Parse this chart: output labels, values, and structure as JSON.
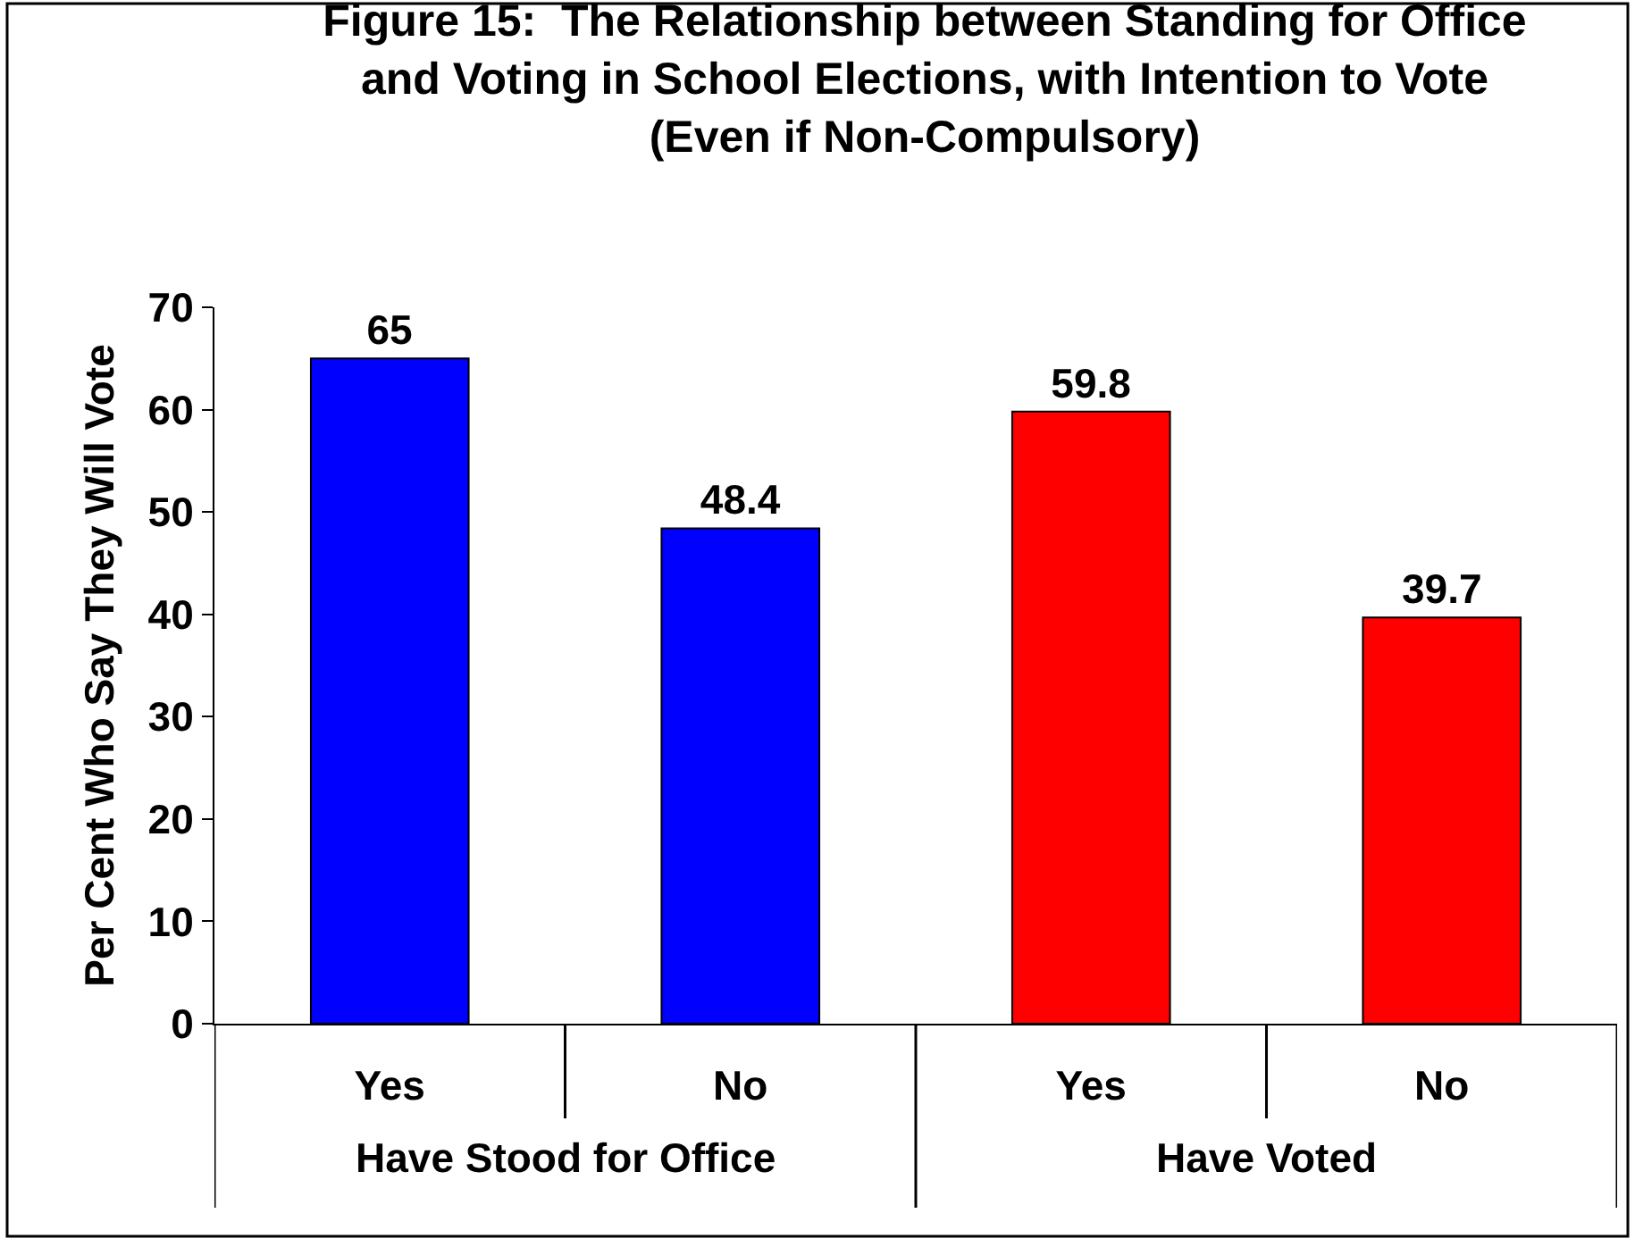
{
  "chart_data": {
    "type": "bar",
    "title": "Figure 15:  The Relationship between Standing for Office\nand Voting in School Elections, with Intention to Vote\n(Even if Non-Compulsory)",
    "ylabel": "Per Cent Who Say They Will Vote",
    "categories": [
      "Yes",
      "No",
      "Yes",
      "No"
    ],
    "values": [
      65,
      48.4,
      59.8,
      39.7
    ],
    "colors": [
      "#0000ff",
      "#0000ff",
      "#ff0000",
      "#ff0000"
    ],
    "annotations": [
      "Have Stood for Office",
      "Have Voted"
    ],
    "ylim": [
      0,
      70
    ],
    "yticks": [
      0,
      10,
      20,
      30,
      40,
      50,
      60,
      70
    ],
    "data_labels": true,
    "grid": false
  }
}
